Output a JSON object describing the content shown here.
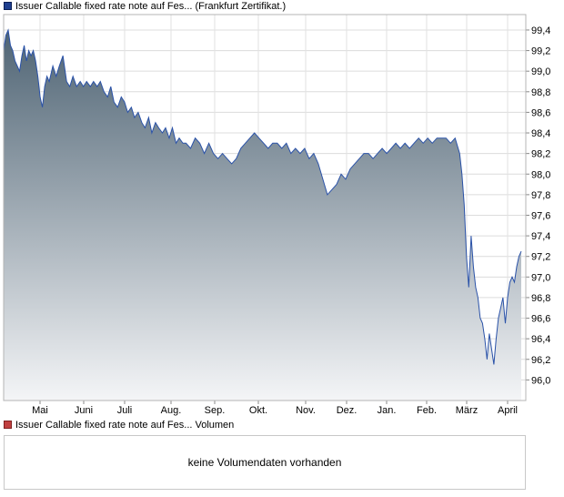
{
  "legend": {
    "price_label": "Issuer Callable fixed rate note auf Fes... (Frankfurt Zertifikat.)",
    "volume_label": "Issuer Callable fixed rate note auf Fes... Volumen",
    "price_color": "#1f3f8f",
    "volume_color": "#c04040"
  },
  "volume_panel": {
    "message": "keine Volumendaten vorhanden"
  },
  "chart_data": {
    "type": "area",
    "x_ticks": [
      "Mai",
      "Juni",
      "Juli",
      "Aug.",
      "Sep.",
      "Okt.",
      "Nov.",
      "Dez.",
      "Jan.",
      "Feb.",
      "März",
      "April"
    ],
    "y_ticks": [
      "99,4",
      "99,2",
      "99,0",
      "98,8",
      "98,6",
      "98,4",
      "98,2",
      "98,0",
      "97,8",
      "97,6",
      "97,4",
      "97,2",
      "97,0",
      "96,8",
      "96,6",
      "96,4",
      "96,2",
      "96,0"
    ],
    "ylim": [
      95.8,
      99.55
    ],
    "grid": true,
    "series": [
      {
        "line_color": "#2a52a8",
        "fill_top": "#4f6474",
        "fill_bottom": "#f4f5f7",
        "x": [
          0.0,
          0.05,
          0.1,
          0.15,
          0.2,
          0.25,
          0.3,
          0.35,
          0.4,
          0.45,
          0.5,
          0.55,
          0.6,
          0.65,
          0.7,
          0.75,
          0.8,
          0.85,
          0.9,
          0.95,
          1.0,
          1.08,
          1.15,
          1.22,
          1.3,
          1.38,
          1.45,
          1.52,
          1.6,
          1.68,
          1.75,
          1.82,
          1.9,
          1.97,
          2.05,
          2.12,
          2.2,
          2.28,
          2.35,
          2.42,
          2.5,
          2.58,
          2.65,
          2.72,
          2.8,
          2.87,
          2.95,
          3.03,
          3.1,
          3.18,
          3.25,
          3.33,
          3.4,
          3.48,
          3.55,
          3.63,
          3.7,
          3.78,
          3.85,
          3.93,
          4.0,
          4.1,
          4.2,
          4.3,
          4.4,
          4.5,
          4.6,
          4.7,
          4.8,
          4.9,
          5.0,
          5.1,
          5.2,
          5.3,
          5.4,
          5.5,
          5.6,
          5.7,
          5.8,
          5.9,
          6.0,
          6.1,
          6.2,
          6.3,
          6.4,
          6.5,
          6.6,
          6.7,
          6.8,
          6.9,
          7.0,
          7.1,
          7.2,
          7.3,
          7.4,
          7.5,
          7.6,
          7.7,
          7.8,
          7.9,
          8.0,
          8.1,
          8.2,
          8.3,
          8.4,
          8.5,
          8.6,
          8.7,
          8.8,
          8.9,
          9.0,
          9.1,
          9.2,
          9.3,
          9.4,
          9.5,
          9.6,
          9.7,
          9.8,
          9.9,
          10.0,
          10.05,
          10.1,
          10.15,
          10.2,
          10.25,
          10.3,
          10.35,
          10.4,
          10.45,
          10.5,
          10.55,
          10.6,
          10.65,
          10.7,
          10.75,
          10.8,
          10.85,
          10.9,
          10.95,
          11.0,
          11.05,
          11.1,
          11.15,
          11.2,
          11.25,
          11.3,
          11.35
        ],
        "y": [
          99.2,
          99.35,
          99.4,
          99.25,
          99.2,
          99.1,
          99.05,
          99.0,
          99.15,
          99.25,
          99.1,
          99.2,
          99.15,
          99.2,
          99.1,
          98.95,
          98.75,
          98.65,
          98.85,
          98.95,
          98.9,
          99.05,
          98.95,
          99.05,
          99.15,
          98.9,
          98.85,
          98.95,
          98.85,
          98.9,
          98.85,
          98.9,
          98.85,
          98.9,
          98.85,
          98.9,
          98.8,
          98.75,
          98.85,
          98.7,
          98.65,
          98.75,
          98.7,
          98.6,
          98.65,
          98.55,
          98.6,
          98.5,
          98.45,
          98.55,
          98.4,
          98.5,
          98.45,
          98.4,
          98.45,
          98.35,
          98.45,
          98.3,
          98.35,
          98.3,
          98.3,
          98.25,
          98.35,
          98.3,
          98.2,
          98.3,
          98.2,
          98.15,
          98.2,
          98.15,
          98.1,
          98.15,
          98.25,
          98.3,
          98.35,
          98.4,
          98.35,
          98.3,
          98.25,
          98.3,
          98.3,
          98.25,
          98.3,
          98.2,
          98.25,
          98.2,
          98.25,
          98.15,
          98.2,
          98.1,
          97.95,
          97.8,
          97.85,
          97.9,
          98.0,
          97.95,
          98.05,
          98.1,
          98.15,
          98.2,
          98.2,
          98.15,
          98.2,
          98.25,
          98.2,
          98.25,
          98.3,
          98.25,
          98.3,
          98.25,
          98.3,
          98.35,
          98.3,
          98.35,
          98.3,
          98.35,
          98.35,
          98.35,
          98.3,
          98.35,
          98.2,
          98.0,
          97.7,
          97.2,
          96.9,
          97.4,
          97.1,
          96.9,
          96.8,
          96.6,
          96.55,
          96.4,
          96.2,
          96.45,
          96.3,
          96.15,
          96.4,
          96.6,
          96.7,
          96.8,
          96.55,
          96.8,
          96.95,
          97.0,
          96.95,
          97.1,
          97.2,
          97.25
        ]
      }
    ]
  }
}
